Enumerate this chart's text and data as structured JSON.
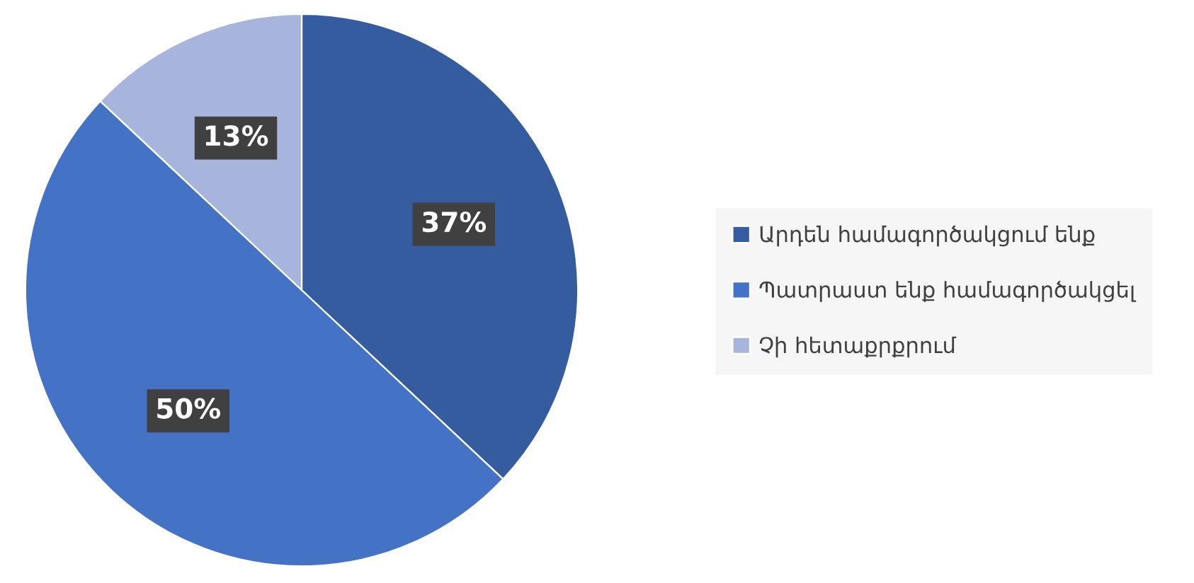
{
  "chart_data": {
    "type": "pie",
    "categories": [
      "Արդեն համագործակցում ենք",
      "Պատրաստ ենք համագործակցել",
      "Չի հետաքրքրում"
    ],
    "values": [
      37,
      50,
      13
    ],
    "colors": [
      "#355c9f",
      "#4472c4",
      "#a7b5dc"
    ],
    "value_labels": [
      "37%",
      "50%",
      "13%"
    ],
    "legend": "right"
  }
}
